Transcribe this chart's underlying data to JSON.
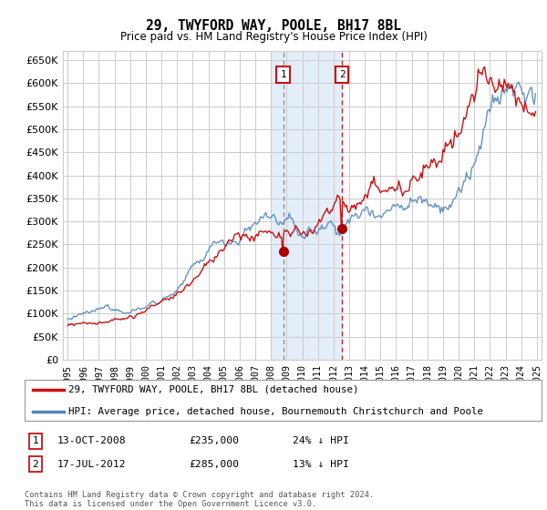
{
  "title": "29, TWYFORD WAY, POOLE, BH17 8BL",
  "subtitle": "Price paid vs. HM Land Registry's House Price Index (HPI)",
  "ytick_values": [
    0,
    50000,
    100000,
    150000,
    200000,
    250000,
    300000,
    350000,
    400000,
    450000,
    500000,
    550000,
    600000,
    650000
  ],
  "ylim": [
    0,
    670000
  ],
  "xlim_start": 1994.7,
  "xlim_end": 2025.3,
  "transaction1_date": 2008.79,
  "transaction1_price": 235000,
  "transaction2_date": 2012.54,
  "transaction2_price": 285000,
  "shaded_start": 2008.0,
  "shaded_end": 2012.54,
  "grid_color": "#cccccc",
  "hpi_line_color": "#5588bb",
  "price_line_color": "#cc1111",
  "marker_color": "#aa0000",
  "box_color": "#cc1111",
  "background_color": "#ffffff",
  "legend_line1": "29, TWYFORD WAY, POOLE, BH17 8BL (detached house)",
  "legend_line2": "HPI: Average price, detached house, Bournemouth Christchurch and Poole",
  "footnote1_label": "1",
  "footnote1_date": "13-OCT-2008",
  "footnote1_price": "£235,000",
  "footnote1_hpi": "24% ↓ HPI",
  "footnote2_label": "2",
  "footnote2_date": "17-JUL-2012",
  "footnote2_price": "£285,000",
  "footnote2_hpi": "13% ↓ HPI",
  "copyright_text": "Contains HM Land Registry data © Crown copyright and database right 2024.\nThis data is licensed under the Open Government Licence v3.0."
}
